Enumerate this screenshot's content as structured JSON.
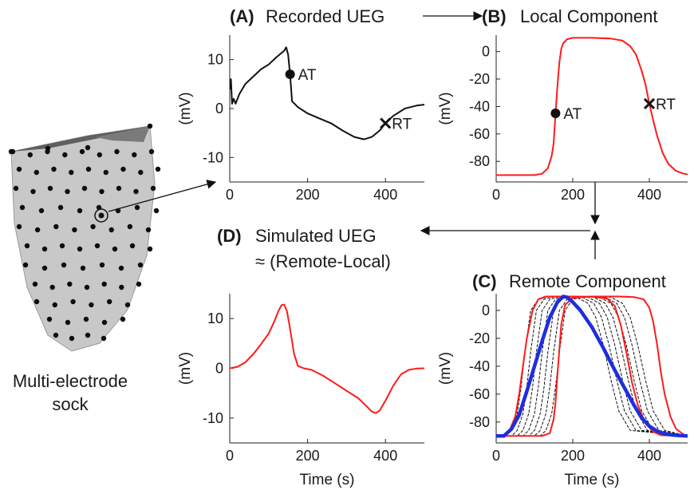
{
  "colors": {
    "text": "#1a1a1a",
    "recorded": "#111111",
    "local": "#ff1a1a",
    "remote_mean": "#1f2de0",
    "remote_dashed": "#111111",
    "sock": "#c8c8c8",
    "sock_top": "#6b6b6b",
    "electrode": "#0d0d0d"
  },
  "sock": {
    "label_line1": "Multi-electrode",
    "label_line2": "sock"
  },
  "panels": {
    "A": {
      "letter": "(A)",
      "title": "Recorded UEG",
      "ylabel": "(mV)",
      "xlabel": "",
      "xlim": [
        0,
        500
      ],
      "ylim": [
        -15,
        15
      ],
      "xticks": [
        0,
        200,
        400
      ],
      "yticks": [
        10,
        0,
        -10
      ],
      "at_label": "AT",
      "rt_label": "RT",
      "at_point": [
        155,
        7
      ],
      "rt_point": [
        400,
        -3
      ]
    },
    "B": {
      "letter": "(B)",
      "title": "Local Component",
      "ylabel": "(mV)",
      "xlabel": "",
      "xlim": [
        0,
        500
      ],
      "ylim": [
        -95,
        12
      ],
      "xticks": [
        0,
        200,
        400
      ],
      "yticks": [
        0,
        -20,
        -40,
        -60,
        -80
      ],
      "at_label": "AT",
      "rt_label": "RT",
      "at_point": [
        155,
        -45
      ],
      "rt_point": [
        400,
        -38
      ]
    },
    "C": {
      "letter": "(C)",
      "title": "Remote Component",
      "ylabel": "(mV)",
      "xlabel": "Time (s)",
      "xlim": [
        0,
        500
      ],
      "ylim": [
        -95,
        12
      ],
      "xticks": [
        0,
        200,
        400
      ],
      "yticks": [
        0,
        -20,
        -40,
        -60,
        -80
      ]
    },
    "D": {
      "letter": "(D)",
      "title": "Simulated UEG",
      "subtitle": "≈ (Remote-Local)",
      "ylabel": "(mV)",
      "xlabel": "Time (s)",
      "xlim": [
        0,
        500
      ],
      "ylim": [
        -15,
        15
      ],
      "xticks": [
        0,
        200,
        400
      ],
      "yticks": [
        10,
        0,
        -10
      ]
    }
  },
  "chart_data": [
    {
      "type": "line",
      "panel": "A",
      "title": "Recorded UEG",
      "xlabel": "",
      "ylabel": "(mV)",
      "xlim": [
        0,
        500
      ],
      "ylim": [
        -15,
        15
      ],
      "series": [
        {
          "x": [
            0,
            3,
            6,
            10,
            15,
            25,
            40,
            60,
            80,
            100,
            120,
            135,
            140,
            145,
            150,
            155,
            160,
            175,
            200,
            230,
            260,
            290,
            320,
            345,
            365,
            385,
            400,
            420,
            450,
            480,
            500
          ],
          "y": [
            4,
            6,
            1,
            2,
            1,
            3,
            5,
            6.5,
            8,
            9,
            10.5,
            11.5,
            11.8,
            12.5,
            11,
            7,
            1.5,
            0.3,
            -1,
            -2,
            -3,
            -4.5,
            -5.8,
            -6.3,
            -5.8,
            -4.5,
            -3,
            -1.5,
            0,
            0.6,
            0.8
          ]
        }
      ],
      "annotations": [
        {
          "label": "AT",
          "x": 155,
          "y": 7,
          "marker": "dot"
        },
        {
          "label": "RT",
          "x": 400,
          "y": -3,
          "marker": "x"
        }
      ]
    },
    {
      "type": "line",
      "panel": "B",
      "title": "Local Component",
      "xlabel": "",
      "ylabel": "(mV)",
      "xlim": [
        0,
        500
      ],
      "ylim": [
        -95,
        12
      ],
      "series": [
        {
          "x": [
            0,
            100,
            120,
            135,
            145,
            150,
            155,
            160,
            165,
            170,
            175,
            185,
            200,
            250,
            300,
            330,
            350,
            365,
            380,
            390,
            400,
            410,
            420,
            435,
            450,
            470,
            490,
            500
          ],
          "y": [
            -90,
            -90,
            -89,
            -85,
            -76,
            -67,
            -45,
            -25,
            -8,
            2,
            6,
            9,
            10,
            10,
            9.5,
            8,
            4,
            -2,
            -14,
            -24,
            -38,
            -50,
            -61,
            -74,
            -82,
            -87,
            -89,
            -89.5
          ]
        }
      ],
      "annotations": [
        {
          "label": "AT",
          "x": 155,
          "y": -45,
          "marker": "dot"
        },
        {
          "label": "RT",
          "x": 400,
          "y": -38,
          "marker": "x"
        }
      ]
    },
    {
      "type": "line",
      "panel": "C",
      "title": "Remote Component",
      "xlabel": "Time (s)",
      "ylabel": "(mV)",
      "xlim": [
        0,
        500
      ],
      "ylim": [
        -95,
        12
      ],
      "series": [
        {
          "style": "mean",
          "x": [
            0,
            20,
            40,
            60,
            80,
            100,
            120,
            140,
            160,
            175,
            185,
            200,
            220,
            250,
            280,
            310,
            340,
            360,
            380,
            400,
            420,
            440,
            460,
            480,
            500
          ],
          "y": [
            -90,
            -90,
            -85,
            -75,
            -58,
            -40,
            -22,
            -5,
            6,
            10,
            9.5,
            6,
            0,
            -12,
            -27,
            -43,
            -58,
            -68,
            -77,
            -83,
            -86.5,
            -88.5,
            -89.3,
            -89.7,
            -90
          ]
        },
        {
          "style": "envelope",
          "x": [
            0,
            20,
            35,
            50,
            60,
            70,
            80,
            95,
            110,
            130,
            160,
            200,
            250,
            290,
            310,
            325,
            340,
            355,
            370,
            390,
            410,
            430,
            500
          ],
          "y": [
            -90,
            -90,
            -86,
            -76,
            -60,
            -40,
            -20,
            0,
            8,
            10,
            10,
            10,
            9.8,
            8.5,
            3,
            -10,
            -30,
            -52,
            -68,
            -81,
            -87,
            -89.5,
            -90
          ]
        },
        {
          "style": "envelope",
          "x": [
            0,
            80,
            120,
            140,
            150,
            155,
            160,
            170,
            180,
            200,
            250,
            320,
            360,
            385,
            400,
            410,
            420,
            430,
            440,
            455,
            470,
            490,
            500
          ],
          "y": [
            -90,
            -90,
            -90,
            -88,
            -78,
            -66,
            -46,
            -10,
            4,
            9,
            10,
            10,
            9.6,
            8,
            2,
            -8,
            -24,
            -44,
            -60,
            -76,
            -85,
            -89,
            -90
          ]
        },
        {
          "style": "dashed",
          "x": [
            0,
            25,
            40,
            55,
            65,
            75,
            90,
            110,
            140,
            180,
            210,
            240,
            260,
            280,
            300,
            320,
            350,
            500
          ],
          "y": [
            -90,
            -90,
            -86,
            -74,
            -55,
            -30,
            0,
            8,
            10,
            10,
            9.5,
            5,
            -5,
            -25,
            -50,
            -72,
            -86,
            -90
          ]
        },
        {
          "style": "dashed",
          "x": [
            0,
            40,
            55,
            70,
            80,
            90,
            105,
            125,
            155,
            195,
            225,
            255,
            275,
            295,
            315,
            335,
            365,
            500
          ],
          "y": [
            -90,
            -90,
            -86,
            -74,
            -55,
            -30,
            0,
            8,
            10,
            10,
            9.5,
            5,
            -5,
            -25,
            -50,
            -72,
            -86,
            -90
          ]
        },
        {
          "style": "dashed",
          "x": [
            0,
            55,
            70,
            85,
            95,
            105,
            120,
            140,
            170,
            210,
            240,
            270,
            290,
            310,
            330,
            350,
            380,
            500
          ],
          "y": [
            -90,
            -90,
            -86,
            -74,
            -55,
            -30,
            0,
            8,
            10,
            10,
            9.5,
            5,
            -5,
            -25,
            -50,
            -72,
            -86,
            -90
          ]
        },
        {
          "style": "dashed",
          "x": [
            0,
            70,
            85,
            100,
            110,
            120,
            135,
            155,
            185,
            225,
            255,
            285,
            305,
            325,
            345,
            365,
            395,
            500
          ],
          "y": [
            -90,
            -90,
            -86,
            -74,
            -55,
            -30,
            0,
            8,
            10,
            10,
            9.5,
            5,
            -5,
            -25,
            -50,
            -72,
            -86,
            -90
          ]
        },
        {
          "style": "dashed",
          "x": [
            0,
            85,
            100,
            115,
            125,
            135,
            150,
            170,
            200,
            240,
            270,
            300,
            320,
            340,
            360,
            380,
            410,
            500
          ],
          "y": [
            -90,
            -90,
            -86,
            -74,
            -55,
            -30,
            0,
            8,
            10,
            10,
            9.5,
            5,
            -5,
            -25,
            -50,
            -72,
            -86,
            -90
          ]
        },
        {
          "style": "dashed",
          "x": [
            0,
            100,
            115,
            130,
            140,
            150,
            165,
            185,
            215,
            255,
            285,
            315,
            335,
            355,
            375,
            395,
            425,
            500
          ],
          "y": [
            -90,
            -90,
            -86,
            -74,
            -55,
            -30,
            0,
            8,
            10,
            10,
            9.5,
            5,
            -5,
            -25,
            -50,
            -72,
            -86,
            -90
          ]
        },
        {
          "style": "dashed",
          "x": [
            0,
            115,
            130,
            145,
            155,
            165,
            180,
            200,
            230,
            270,
            300,
            330,
            350,
            370,
            390,
            410,
            440,
            500
          ],
          "y": [
            -90,
            -90,
            -86,
            -74,
            -55,
            -30,
            0,
            8,
            10,
            10,
            9.5,
            5,
            -5,
            -25,
            -50,
            -72,
            -86,
            -90
          ]
        }
      ]
    },
    {
      "type": "line",
      "panel": "D",
      "title": "Simulated UEG",
      "xlabel": "Time (s)",
      "ylabel": "(mV)",
      "xlim": [
        0,
        500
      ],
      "ylim": [
        -15,
        15
      ],
      "series": [
        {
          "x": [
            0,
            20,
            40,
            60,
            80,
            100,
            115,
            125,
            133,
            140,
            147,
            155,
            165,
            175,
            190,
            210,
            240,
            270,
            300,
            330,
            350,
            365,
            375,
            385,
            400,
            420,
            440,
            460,
            480,
            500
          ],
          "y": [
            0,
            0.3,
            1.2,
            2.8,
            4.8,
            7,
            9.5,
            11.5,
            12.7,
            12.8,
            11.5,
            8,
            3,
            0.5,
            0,
            -0.3,
            -1.5,
            -3,
            -4.5,
            -6,
            -7.5,
            -8.7,
            -9,
            -8.5,
            -6.5,
            -3.5,
            -1.2,
            -0.3,
            -0.05,
            0
          ]
        }
      ]
    }
  ]
}
